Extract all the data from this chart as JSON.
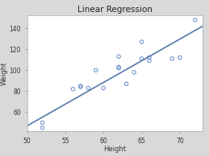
{
  "title": "Linear Regression",
  "xlabel": "Height",
  "ylabel": "Weight",
  "scatter_x": [
    52,
    52,
    56,
    57,
    57,
    58,
    59,
    60,
    62,
    62,
    62,
    63,
    64,
    65,
    65,
    66,
    66,
    69,
    70,
    72
  ],
  "scatter_y": [
    45,
    50,
    82,
    84,
    85,
    83,
    100,
    83,
    102,
    103,
    113,
    87,
    98,
    127,
    111,
    109,
    112,
    111,
    112,
    148
  ],
  "line_x": [
    50,
    73
  ],
  "line_y": [
    47,
    142
  ],
  "scatter_color": "#7799cc",
  "line_color": "#5577aa",
  "fig_bg_color": "#d9d9d9",
  "plot_bg_color": "#ffffff",
  "xlim": [
    50,
    73
  ],
  "ylim": [
    42,
    152
  ],
  "xticks": [
    50,
    55,
    60,
    65,
    70
  ],
  "yticks": [
    60,
    80,
    100,
    120,
    140
  ],
  "title_fontsize": 7.5,
  "label_fontsize": 6.0,
  "tick_fontsize": 5.5
}
